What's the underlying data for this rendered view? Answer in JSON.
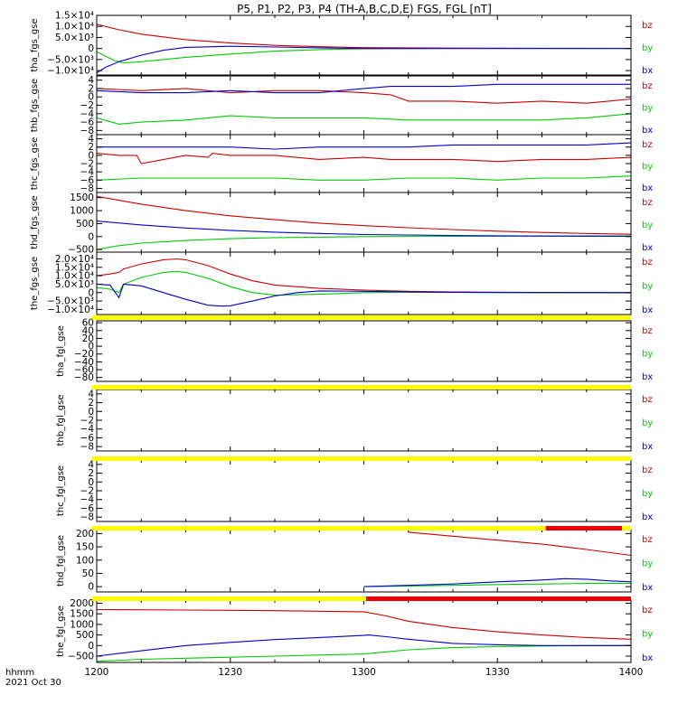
{
  "figure": {
    "title": "P5, P1, P2, P3, P4 (TH-A,B,C,D,E) FGS, FGL [nT]",
    "x_axis_label": "hhmm",
    "date_label": "2021 Oct 30",
    "x_ticks": [
      "1200",
      "1230",
      "1300",
      "1330",
      "1400"
    ]
  },
  "colors": {
    "bz": "#cc0000",
    "by": "#00cc00",
    "bx": "#0000cc",
    "bar_yellow": "#ffff00",
    "bar_red": "#ee0000",
    "axis": "#000000"
  },
  "chart_data": [
    {
      "type": "line",
      "panel_label": "tha_fgs_gse",
      "xlim": [
        0,
        120
      ],
      "ylim": [
        -12000,
        15000
      ],
      "y_ticks": [
        {
          "v": 15000,
          "label": "1.5×10⁴"
        },
        {
          "v": 10000,
          "label": "1.0×10⁴"
        },
        {
          "v": 5000,
          "label": "5.0×10³"
        },
        {
          "v": 0,
          "label": "0"
        },
        {
          "v": -5000,
          "label": "−5.0×10³"
        },
        {
          "v": -10000,
          "label": "−1.0×10⁴"
        }
      ],
      "series": [
        {
          "name": "bz",
          "x": [
            0,
            5,
            10,
            20,
            30,
            40,
            50,
            60,
            80,
            100,
            120
          ],
          "y": [
            11000,
            8500,
            6500,
            4000,
            2500,
            1400,
            800,
            400,
            200,
            100,
            50
          ]
        },
        {
          "name": "by",
          "x": [
            0,
            2,
            4,
            6,
            10,
            20,
            30,
            40,
            50,
            60,
            80,
            100,
            120
          ],
          "y": [
            -1500,
            -3500,
            -5500,
            -6500,
            -6000,
            -4000,
            -2500,
            -1200,
            -500,
            -100,
            50,
            50,
            50
          ]
        },
        {
          "name": "bx",
          "x": [
            0,
            2,
            5,
            10,
            15,
            20,
            30,
            40,
            50,
            60,
            80,
            100,
            120
          ],
          "y": [
            -11000,
            -8500,
            -6000,
            -3000,
            -800,
            500,
            1000,
            700,
            300,
            0,
            0,
            0,
            0
          ]
        }
      ]
    },
    {
      "type": "line",
      "panel_label": "thb_fgs_gse",
      "xlim": [
        0,
        120
      ],
      "ylim": [
        -9,
        5
      ],
      "y_ticks": [
        {
          "v": 4,
          "label": "4"
        },
        {
          "v": 2,
          "label": "2"
        },
        {
          "v": 0,
          "label": "0"
        },
        {
          "v": -2,
          "label": "−2"
        },
        {
          "v": -4,
          "label": "−4"
        },
        {
          "v": -6,
          "label": "−6"
        },
        {
          "v": -8,
          "label": "−8"
        }
      ],
      "series": [
        {
          "name": "bz",
          "x": [
            0,
            10,
            20,
            30,
            40,
            50,
            60,
            66,
            70,
            80,
            90,
            100,
            110,
            115,
            120
          ],
          "y": [
            2,
            1.5,
            2,
            1,
            1.5,
            1.5,
            1,
            0.5,
            -1,
            -1,
            -1.5,
            -1,
            -1.5,
            -1,
            -0.5
          ]
        },
        {
          "name": "by",
          "x": [
            0,
            5,
            10,
            20,
            30,
            40,
            50,
            60,
            70,
            80,
            90,
            100,
            110,
            120
          ],
          "y": [
            -5,
            -6.5,
            -6,
            -5.5,
            -4.5,
            -5,
            -5,
            -5,
            -5.5,
            -5.5,
            -5.5,
            -5.5,
            -5,
            -4
          ]
        },
        {
          "name": "bx",
          "x": [
            0,
            10,
            20,
            30,
            40,
            50,
            60,
            66,
            70,
            80,
            90,
            100,
            110,
            120
          ],
          "y": [
            1.5,
            1,
            1,
            1.5,
            1,
            1,
            2,
            2.5,
            2.5,
            2.5,
            3,
            3,
            3,
            3
          ]
        }
      ]
    },
    {
      "type": "line",
      "panel_label": "thc_fgs_gse",
      "xlim": [
        0,
        120
      ],
      "ylim": [
        -9,
        5
      ],
      "y_ticks": [
        {
          "v": 4,
          "label": "4"
        },
        {
          "v": 2,
          "label": "2"
        },
        {
          "v": 0,
          "label": "0"
        },
        {
          "v": -2,
          "label": "−2"
        },
        {
          "v": -4,
          "label": "−4"
        },
        {
          "v": -6,
          "label": "−6"
        },
        {
          "v": -8,
          "label": "−8"
        }
      ],
      "series": [
        {
          "name": "bz",
          "x": [
            0,
            5,
            9,
            10,
            20,
            25,
            26,
            30,
            40,
            50,
            60,
            66,
            70,
            80,
            90,
            100,
            110,
            120
          ],
          "y": [
            0.5,
            0,
            0,
            -2,
            0,
            -0.5,
            0.5,
            0,
            0,
            -1,
            -0.5,
            -1,
            -1,
            -1,
            -1.5,
            -1,
            -1,
            -0.5
          ]
        },
        {
          "name": "by",
          "x": [
            0,
            10,
            20,
            30,
            40,
            50,
            60,
            70,
            80,
            90,
            100,
            110,
            120
          ],
          "y": [
            -6,
            -5.5,
            -5.5,
            -5.5,
            -5.5,
            -6,
            -6,
            -5.5,
            -5.5,
            -6,
            -5.5,
            -5.5,
            -5
          ]
        },
        {
          "name": "bx",
          "x": [
            0,
            10,
            20,
            30,
            40,
            50,
            60,
            70,
            80,
            90,
            100,
            110,
            120
          ],
          "y": [
            2,
            2,
            2,
            2,
            1.5,
            2,
            2,
            2,
            2.5,
            2.5,
            2.5,
            2.5,
            3
          ]
        }
      ]
    },
    {
      "type": "line",
      "panel_label": "thd_fgs_gse",
      "xlim": [
        0,
        120
      ],
      "ylim": [
        -600,
        1700
      ],
      "y_ticks": [
        {
          "v": 1500,
          "label": "1500"
        },
        {
          "v": 1000,
          "label": "1000"
        },
        {
          "v": 500,
          "label": "500"
        },
        {
          "v": 0,
          "label": "0"
        },
        {
          "v": -500,
          "label": "−500"
        }
      ],
      "series": [
        {
          "name": "bz",
          "x": [
            0,
            10,
            20,
            30,
            40,
            50,
            60,
            70,
            80,
            90,
            100,
            110,
            120
          ],
          "y": [
            1550,
            1250,
            1000,
            800,
            650,
            520,
            420,
            340,
            270,
            210,
            160,
            120,
            90
          ]
        },
        {
          "name": "by",
          "x": [
            0,
            5,
            10,
            20,
            30,
            40,
            50,
            60,
            80,
            100,
            120
          ],
          "y": [
            -500,
            -350,
            -250,
            -150,
            -80,
            -40,
            -20,
            0,
            10,
            20,
            30
          ]
        },
        {
          "name": "bx",
          "x": [
            0,
            10,
            20,
            30,
            40,
            50,
            60,
            80,
            100,
            120
          ],
          "y": [
            600,
            450,
            330,
            240,
            170,
            120,
            80,
            40,
            20,
            10
          ]
        }
      ]
    },
    {
      "type": "line",
      "panel_label": "the_fgs_gse",
      "xlim": [
        0,
        120
      ],
      "ylim": [
        -13000,
        24000
      ],
      "y_ticks": [
        {
          "v": 20000,
          "label": "2.0×10⁴"
        },
        {
          "v": 15000,
          "label": "1.5×10⁴"
        },
        {
          "v": 10000,
          "label": "1.0×10⁴"
        },
        {
          "v": 5000,
          "label": "5.0×10³"
        },
        {
          "v": 0,
          "label": "0"
        },
        {
          "v": -5000,
          "label": "−5.0×10³"
        },
        {
          "v": -10000,
          "label": "−1.0×10⁴"
        }
      ],
      "series": [
        {
          "name": "bz",
          "x": [
            0,
            3,
            5,
            6,
            10,
            15,
            18,
            20,
            25,
            30,
            35,
            40,
            50,
            60,
            70,
            80,
            90,
            100,
            110,
            120
          ],
          "y": [
            10000,
            11000,
            12000,
            14000,
            17000,
            19500,
            20000,
            19500,
            16000,
            11000,
            7000,
            4500,
            2500,
            1500,
            800,
            400,
            200,
            100,
            50,
            0
          ]
        },
        {
          "name": "by",
          "x": [
            0,
            3,
            5,
            6,
            10,
            15,
            18,
            20,
            25,
            30,
            35,
            40,
            50,
            60,
            70,
            80,
            90,
            100,
            120
          ],
          "y": [
            3000,
            2000,
            0,
            5000,
            9000,
            12000,
            12500,
            12000,
            8500,
            3500,
            0,
            -1500,
            -1000,
            0,
            200,
            100,
            50,
            0,
            0
          ]
        },
        {
          "name": "bx",
          "x": [
            0,
            3,
            5,
            6,
            10,
            15,
            20,
            25,
            28,
            30,
            35,
            40,
            45,
            50,
            60,
            70,
            80,
            90,
            100,
            120
          ],
          "y": [
            5000,
            4500,
            -3000,
            5000,
            4000,
            0,
            -4000,
            -7500,
            -8000,
            -7800,
            -5000,
            -2000,
            0,
            1000,
            800,
            400,
            200,
            100,
            50,
            0
          ]
        }
      ]
    },
    {
      "type": "line",
      "panel_label": "tha_fgl_gse",
      "xlim": [
        0,
        120
      ],
      "ylim": [
        -90,
        65
      ],
      "y_ticks": [
        {
          "v": 60,
          "label": "60"
        },
        {
          "v": 40,
          "label": "40"
        },
        {
          "v": 20,
          "label": "20"
        },
        {
          "v": 0,
          "label": "0"
        },
        {
          "v": -20,
          "label": "−20"
        },
        {
          "v": -40,
          "label": "−40"
        },
        {
          "v": -60,
          "label": "−60"
        },
        {
          "v": -80,
          "label": "−80"
        }
      ],
      "series": []
    },
    {
      "type": "line",
      "panel_label": "thb_fgl_gse",
      "xlim": [
        0,
        120
      ],
      "ylim": [
        -9,
        5
      ],
      "y_ticks": [
        {
          "v": 4,
          "label": "4"
        },
        {
          "v": 2,
          "label": "2"
        },
        {
          "v": 0,
          "label": "0"
        },
        {
          "v": -2,
          "label": "−2"
        },
        {
          "v": -4,
          "label": "−4"
        },
        {
          "v": -6,
          "label": "−6"
        },
        {
          "v": -8,
          "label": "−8"
        }
      ],
      "series": []
    },
    {
      "type": "line",
      "panel_label": "thc_fgl_gse",
      "xlim": [
        0,
        120
      ],
      "ylim": [
        -9,
        5
      ],
      "y_ticks": [
        {
          "v": 4,
          "label": "4"
        },
        {
          "v": 2,
          "label": "2"
        },
        {
          "v": 0,
          "label": "0"
        },
        {
          "v": -2,
          "label": "−2"
        },
        {
          "v": -4,
          "label": "−4"
        },
        {
          "v": -6,
          "label": "−6"
        },
        {
          "v": -8,
          "label": "−8"
        }
      ],
      "series": []
    },
    {
      "type": "line",
      "panel_label": "thd_fgl_gse",
      "xlim": [
        0,
        120
      ],
      "ylim": [
        -20,
        215
      ],
      "y_ticks": [
        {
          "v": 200,
          "label": "200"
        },
        {
          "v": 150,
          "label": "150"
        },
        {
          "v": 100,
          "label": "100"
        },
        {
          "v": 50,
          "label": "50"
        },
        {
          "v": 0,
          "label": "0"
        }
      ],
      "series": [
        {
          "name": "bz",
          "x": [
            70,
            80,
            90,
            100,
            110,
            120
          ],
          "y": [
            205,
            190,
            175,
            160,
            140,
            118
          ]
        },
        {
          "name": "by",
          "x": [
            60,
            70,
            80,
            90,
            100,
            110,
            120
          ],
          "y": [
            0,
            2,
            5,
            8,
            10,
            12,
            12
          ]
        },
        {
          "name": "bx",
          "x": [
            60,
            70,
            80,
            90,
            100,
            105,
            110,
            115,
            120
          ],
          "y": [
            0,
            5,
            10,
            18,
            25,
            30,
            28,
            22,
            18
          ]
        }
      ]
    },
    {
      "type": "line",
      "panel_label": "the_fgl_gse",
      "xlim": [
        0,
        120
      ],
      "ylim": [
        -800,
        2150
      ],
      "y_ticks": [
        {
          "v": 2000,
          "label": "2000"
        },
        {
          "v": 1500,
          "label": "1500"
        },
        {
          "v": 1000,
          "label": "1000"
        },
        {
          "v": 500,
          "label": "500"
        },
        {
          "v": 0,
          "label": "0"
        },
        {
          "v": -500,
          "label": "−500"
        }
      ],
      "series": [
        {
          "name": "bz",
          "x": [
            0,
            20,
            40,
            60,
            65,
            70,
            80,
            90,
            100,
            110,
            120
          ],
          "y": [
            1700,
            1680,
            1650,
            1600,
            1400,
            1150,
            850,
            650,
            500,
            380,
            300
          ]
        },
        {
          "name": "by",
          "x": [
            0,
            10,
            20,
            30,
            40,
            50,
            60,
            65,
            70,
            80,
            90,
            100,
            110,
            120
          ],
          "y": [
            -750,
            -650,
            -600,
            -550,
            -500,
            -450,
            -400,
            -300,
            -200,
            -100,
            -50,
            -20,
            0,
            0
          ]
        },
        {
          "name": "bx",
          "x": [
            0,
            10,
            20,
            30,
            40,
            50,
            60,
            61,
            65,
            70,
            75,
            80,
            90,
            100,
            110,
            120
          ],
          "y": [
            -500,
            -250,
            0,
            150,
            280,
            380,
            480,
            500,
            420,
            300,
            200,
            100,
            40,
            0,
            0,
            0
          ]
        }
      ]
    }
  ],
  "legend_labels": [
    "bz",
    "by",
    "bx"
  ],
  "flag_bars": [
    {
      "segments": [
        {
          "from": 0,
          "to": 120,
          "color": "yellow"
        }
      ]
    },
    {
      "segments": [
        {
          "from": 0,
          "to": 120,
          "color": "yellow"
        }
      ]
    },
    {
      "segments": [
        {
          "from": 0,
          "to": 120,
          "color": "yellow"
        }
      ]
    },
    {
      "segments": [
        {
          "from": 0,
          "to": 101,
          "color": "yellow"
        },
        {
          "from": 101,
          "to": 118,
          "color": "red"
        },
        {
          "from": 118,
          "to": 120,
          "color": "yellow"
        }
      ]
    },
    {
      "segments": [
        {
          "from": 0,
          "to": 61,
          "color": "yellow"
        },
        {
          "from": 61,
          "to": 120,
          "color": "red"
        }
      ]
    }
  ]
}
